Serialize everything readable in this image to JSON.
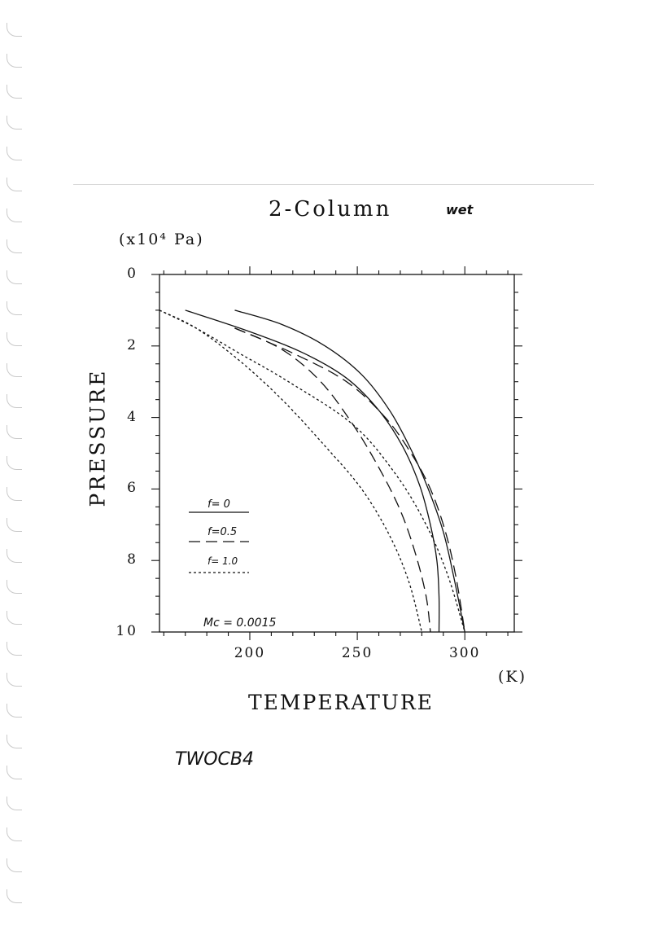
{
  "page": {
    "figure_id": "TWOCB4"
  },
  "chart_data": {
    "type": "line",
    "title": "2-Column",
    "annotation_wet": "wet",
    "xlabel": "TEMPERATURE",
    "xunit": "(K)",
    "ylabel": "PRESSURE",
    "yunit": "(x10⁴ Pa)",
    "xlim": [
      158,
      323
    ],
    "ylim": [
      10,
      0
    ],
    "xticks": [
      "200",
      "250",
      "300"
    ],
    "xtick_values": [
      200,
      250,
      300
    ],
    "yticks": [
      "0",
      "2",
      "4",
      "6",
      "8",
      "10"
    ],
    "ytick_values": [
      0,
      2,
      4,
      6,
      8,
      10
    ],
    "legend": [
      {
        "label": "f= 0",
        "style": "solid"
      },
      {
        "label": "f=0.5",
        "style": "long-dash"
      },
      {
        "label": "f= 1.0",
        "style": "short-dash"
      }
    ],
    "parameter_note": "Mc = 0.0015",
    "series": [
      {
        "group": "f= 0",
        "style": "solid",
        "x": [
          193,
          215,
          235,
          252,
          265,
          275,
          283,
          290,
          295,
          300
        ],
        "y": [
          1.0,
          1.4,
          2.0,
          2.8,
          3.8,
          4.9,
          6.0,
          7.2,
          8.5,
          10.0
        ]
      },
      {
        "group": "f= 0",
        "style": "solid",
        "x": [
          170,
          200,
          225,
          245,
          260,
          271,
          279,
          284,
          287,
          288,
          288
        ],
        "y": [
          1.0,
          1.6,
          2.2,
          2.9,
          3.8,
          4.8,
          5.9,
          7.0,
          8.0,
          9.0,
          10.0
        ]
      },
      {
        "group": "f=0.5",
        "style": "long-dash",
        "x": [
          193,
          220,
          245,
          263,
          275,
          284,
          291,
          296,
          300
        ],
        "y": [
          1.5,
          2.2,
          3.0,
          4.0,
          5.0,
          6.0,
          7.2,
          8.5,
          10.0
        ]
      },
      {
        "group": "f=0.5",
        "style": "long-dash",
        "x": [
          193,
          215,
          233,
          248,
          260,
          270,
          277,
          282,
          284
        ],
        "y": [
          1.5,
          2.1,
          3.0,
          4.2,
          5.4,
          6.6,
          7.8,
          9.0,
          10.0
        ]
      },
      {
        "group": "f= 1.0",
        "style": "short-dash",
        "x": [
          158,
          175,
          195,
          218,
          248,
          268,
          282,
          292,
          300
        ],
        "y": [
          1.0,
          1.5,
          2.2,
          3.0,
          4.2,
          5.6,
          7.0,
          8.4,
          10.0
        ]
      },
      {
        "group": "f= 1.0",
        "style": "short-dash",
        "x": [
          158,
          175,
          195,
          215,
          235,
          252,
          265,
          274,
          280
        ],
        "y": [
          1.0,
          1.5,
          2.4,
          3.5,
          4.8,
          6.0,
          7.3,
          8.6,
          10.0
        ]
      }
    ]
  }
}
